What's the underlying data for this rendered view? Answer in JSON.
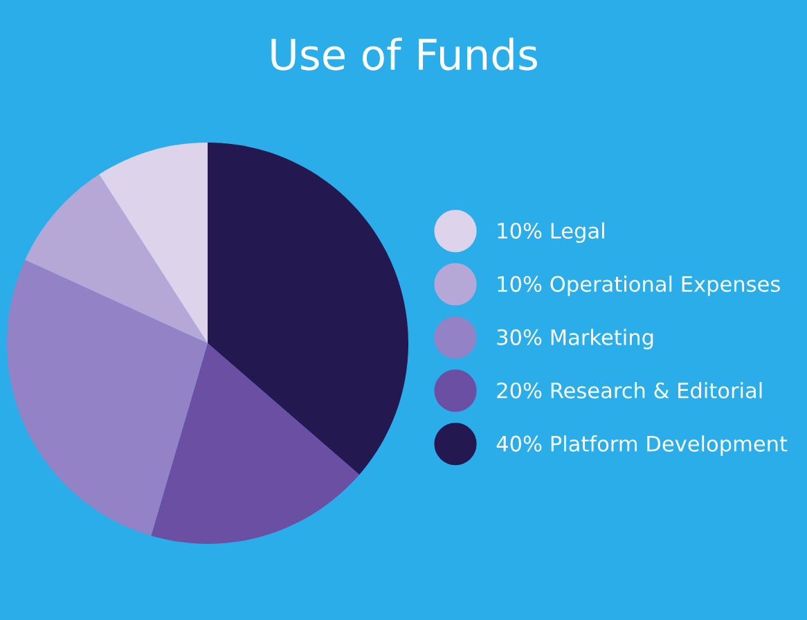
{
  "chart_data": {
    "type": "pie",
    "title": "Use of Funds",
    "categories": [
      "Legal",
      "Operational Expenses",
      "Marketing",
      "Research & Editorial",
      "Platform Development"
    ],
    "values": [
      10,
      10,
      30,
      20,
      40
    ],
    "value_labels": [
      "10%",
      "10%",
      "30%",
      "20%",
      "40%"
    ],
    "colors": [
      "#ddd3ea",
      "#b6a8d6",
      "#9482c6",
      "#6a4fa3",
      "#231850"
    ],
    "legend": "right"
  }
}
